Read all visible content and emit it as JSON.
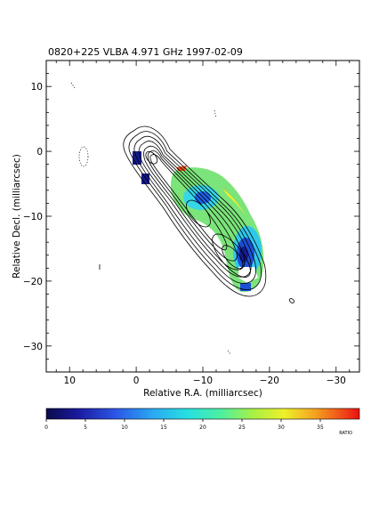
{
  "title": "0820+225   VLBA   4.971 GHz   1997-02-09",
  "chart_data": {
    "type": "heatmap",
    "title": "0820+225   VLBA   4.971 GHz   1997-02-09",
    "xlabel": "Relative R.A. (milliarcsec)",
    "ylabel": "Relative Decl. (milliarcsec)",
    "xlim": [
      13.5,
      -33.5
    ],
    "ylim": [
      -34,
      14
    ],
    "x_ticks": [
      10,
      0,
      -10,
      -20,
      -30
    ],
    "x_tick_labels": [
      "10",
      "0",
      "−10",
      "−20",
      "−30"
    ],
    "y_ticks": [
      10,
      0,
      -10,
      -20,
      -30
    ],
    "y_tick_labels": [
      "10",
      "0",
      "−10",
      "−20",
      "−30"
    ],
    "colorbar": {
      "label": "RATIO",
      "min": 0,
      "max": 40,
      "ticks": [
        0,
        5,
        10,
        15,
        20,
        25,
        30,
        35
      ],
      "tick_labels": [
        "0",
        "5",
        "10",
        "15",
        "20",
        "25",
        "30",
        "35"
      ]
    },
    "contour_center": [
      -11,
      -10
    ]
  }
}
